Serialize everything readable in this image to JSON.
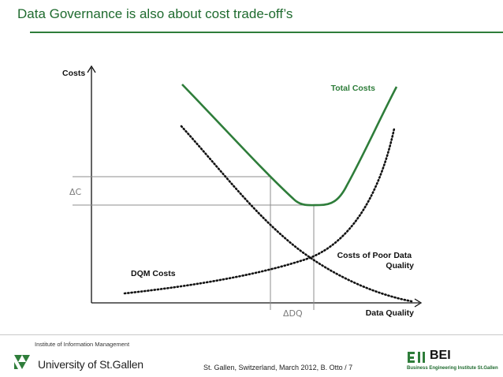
{
  "slide": {
    "title": "Data Governance is also about cost trade-off’s"
  },
  "diagram": {
    "y_axis_label": "Costs",
    "x_axis_label": "Data Quality",
    "curves": {
      "total_costs": "Total Costs",
      "costs_of_poor_quality": "Costs of Poor Data Quality",
      "dqm_costs": "DQM Costs"
    },
    "delta_c": "ΔC",
    "delta_dq": "ΔDQ",
    "colors": {
      "total_curve": "#2e7d3a",
      "dotted_curves": "#111111",
      "guide_lines": "#8c8c8c"
    }
  },
  "footer": {
    "institute": "Institute of Information Management",
    "university": "University of St.Gallen",
    "citation": "St. Gallen, Switzerland, March 2012, B. Otto / 7",
    "bei_acronym": "BEI",
    "bei_name": "Business Engineering Institute St.Gallen"
  }
}
